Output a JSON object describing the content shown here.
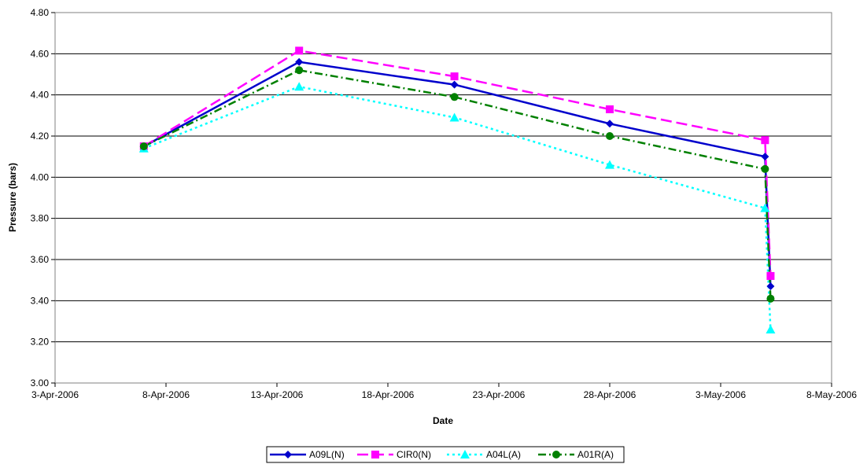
{
  "chart_data": {
    "type": "line",
    "title": "",
    "xlabel": "Date",
    "ylabel": "Pressure (bars)",
    "xlim": [
      "2006-04-03",
      "2006-05-08"
    ],
    "ylim": [
      3.0,
      4.8
    ],
    "x_ticks": [
      "3-Apr-2006",
      "8-Apr-2006",
      "13-Apr-2006",
      "18-Apr-2006",
      "23-Apr-2006",
      "28-Apr-2006",
      "3-May-2006",
      "8-May-2006"
    ],
    "y_ticks": [
      "3.00",
      "3.20",
      "3.40",
      "3.60",
      "3.80",
      "4.00",
      "4.20",
      "4.40",
      "4.60",
      "4.80"
    ],
    "grid": "horizontal",
    "legend_position": "bottom",
    "series": [
      {
        "name": "A09L(N)",
        "color": "#0000cc",
        "marker": "diamond",
        "dash": "solid",
        "points": [
          {
            "x": "2006-04-07",
            "y": 4.15
          },
          {
            "x": "2006-04-14",
            "y": 4.56
          },
          {
            "x": "2006-04-21",
            "y": 4.45
          },
          {
            "x": "2006-04-28",
            "y": 4.26
          },
          {
            "x": "2006-05-05",
            "y": 4.1
          },
          {
            "x": "2006-05-05T06:00",
            "y": 3.47
          }
        ]
      },
      {
        "name": "CIR0(N)",
        "color": "#ff00ff",
        "marker": "square",
        "dash": "long-dash",
        "points": [
          {
            "x": "2006-04-07",
            "y": 4.15
          },
          {
            "x": "2006-04-14",
            "y": 4.615
          },
          {
            "x": "2006-04-21",
            "y": 4.49
          },
          {
            "x": "2006-04-28",
            "y": 4.33
          },
          {
            "x": "2006-05-05",
            "y": 4.18
          },
          {
            "x": "2006-05-05T06:00",
            "y": 3.52
          }
        ]
      },
      {
        "name": "A04L(A)",
        "color": "#00ffff",
        "marker": "triangle",
        "dash": "dotted",
        "points": [
          {
            "x": "2006-04-07",
            "y": 4.14
          },
          {
            "x": "2006-04-14",
            "y": 4.44
          },
          {
            "x": "2006-04-21",
            "y": 4.29
          },
          {
            "x": "2006-04-28",
            "y": 4.06
          },
          {
            "x": "2006-05-05",
            "y": 3.85
          },
          {
            "x": "2006-05-05T06:00",
            "y": 3.26
          }
        ]
      },
      {
        "name": "A01R(A)",
        "color": "#008000",
        "marker": "circle",
        "dash": "dash-dot",
        "points": [
          {
            "x": "2006-04-07",
            "y": 4.15
          },
          {
            "x": "2006-04-14",
            "y": 4.52
          },
          {
            "x": "2006-04-21",
            "y": 4.39
          },
          {
            "x": "2006-04-28",
            "y": 4.2
          },
          {
            "x": "2006-05-05",
            "y": 4.04
          },
          {
            "x": "2006-05-05T06:00",
            "y": 3.41
          }
        ]
      }
    ]
  }
}
